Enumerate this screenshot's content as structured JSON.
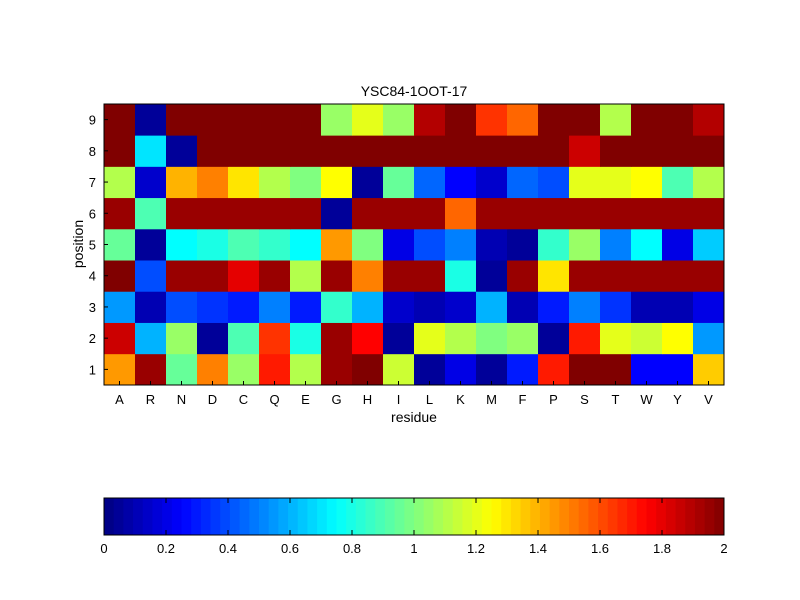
{
  "chart_data": [
    {
      "type": "heatmap",
      "title": "YSC84-1OOT-17",
      "xlabel": "residue",
      "ylabel": "position",
      "x_categories": [
        "A",
        "R",
        "N",
        "D",
        "C",
        "Q",
        "E",
        "G",
        "H",
        "I",
        "L",
        "K",
        "M",
        "F",
        "P",
        "S",
        "T",
        "W",
        "Y",
        "V"
      ],
      "y_categories": [
        "1",
        "2",
        "3",
        "4",
        "5",
        "6",
        "7",
        "8",
        "9"
      ],
      "color_range": [
        0,
        2
      ],
      "colormap": "jet",
      "values": [
        [
          1.45,
          1.95,
          0.95,
          1.5,
          1.05,
          1.7,
          1.1,
          1.95,
          2.0,
          1.15,
          0.05,
          0.2,
          0.05,
          0.3,
          1.7,
          2.0,
          2.0,
          0.25,
          0.25,
          1.35
        ],
        [
          1.85,
          0.6,
          1.05,
          0.05,
          0.9,
          1.65,
          0.8,
          1.95,
          1.75,
          0.05,
          1.2,
          1.1,
          1.0,
          1.05,
          0.05,
          1.7,
          1.2,
          1.15,
          1.25,
          0.55
        ],
        [
          0.55,
          0.1,
          0.4,
          0.35,
          0.3,
          0.5,
          0.3,
          0.85,
          0.6,
          0.15,
          0.1,
          0.15,
          0.6,
          0.1,
          0.3,
          0.5,
          0.35,
          0.1,
          0.1,
          0.2
        ],
        [
          2.0,
          0.4,
          1.95,
          1.95,
          1.8,
          1.95,
          1.1,
          1.95,
          1.5,
          1.95,
          1.95,
          0.8,
          0.05,
          1.95,
          1.3,
          1.95,
          1.95,
          1.95,
          1.95,
          1.95
        ],
        [
          0.95,
          0.05,
          0.75,
          0.8,
          0.9,
          0.85,
          0.75,
          1.45,
          1.0,
          0.2,
          0.4,
          0.5,
          0.1,
          0.05,
          0.85,
          1.05,
          0.5,
          0.75,
          0.2,
          0.65
        ],
        [
          1.95,
          0.9,
          1.95,
          1.95,
          1.95,
          1.95,
          1.95,
          0.05,
          1.95,
          1.95,
          1.95,
          1.55,
          1.95,
          1.95,
          1.95,
          1.95,
          1.95,
          1.95,
          1.95,
          1.95
        ],
        [
          1.1,
          0.15,
          1.4,
          1.5,
          1.3,
          1.1,
          1.0,
          1.25,
          0.05,
          0.95,
          0.45,
          0.25,
          0.15,
          0.45,
          0.4,
          1.2,
          1.2,
          1.25,
          0.9,
          1.1
        ],
        [
          2.0,
          0.7,
          0.05,
          2.0,
          2.0,
          2.0,
          2.0,
          2.0,
          2.0,
          2.0,
          2.0,
          2.0,
          2.0,
          2.0,
          2.0,
          1.85,
          2.0,
          2.0,
          2.0,
          2.0
        ],
        [
          2.0,
          0.05,
          2.0,
          2.0,
          2.0,
          2.0,
          2.0,
          1.05,
          1.2,
          1.05,
          1.9,
          2.0,
          1.65,
          1.55,
          2.0,
          2.0,
          1.1,
          2.0,
          2.0,
          1.9
        ]
      ]
    },
    {
      "type": "colorbar",
      "ticks": [
        "0",
        "0.2",
        "0.4",
        "0.6",
        "0.8",
        "1",
        "1.2",
        "1.4",
        "1.6",
        "1.8",
        "2"
      ],
      "range": [
        0,
        2
      ],
      "steps": 64
    }
  ]
}
